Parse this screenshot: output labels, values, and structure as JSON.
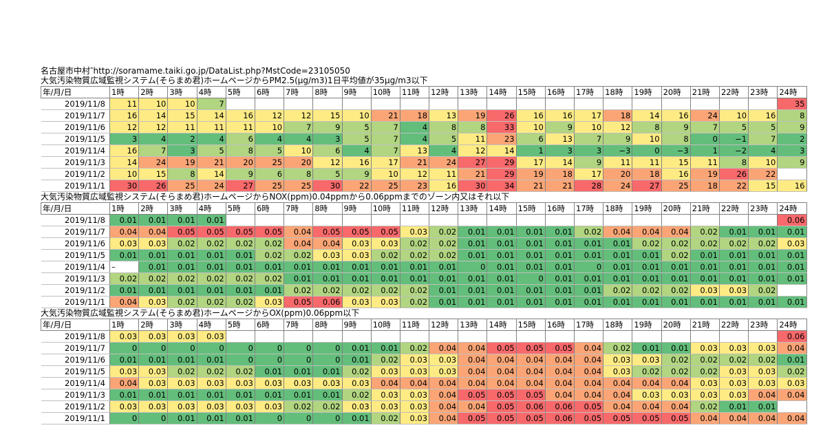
{
  "header": {
    "source": "名古屋市中村‶http://soramame.taiki.go.jp/DataList.php?MstCode=23105050"
  },
  "colors": {
    "red": "#f8696b",
    "orange": "#fba576",
    "yellow": "#ffeb84",
    "light_green": "#b1d580",
    "green": "#63be7b"
  },
  "columns": [
    "年/月/日",
    "1時",
    "2時",
    "3時",
    "4時",
    "5時",
    "6時",
    "7時",
    "8時",
    "9時",
    "10時",
    "11時",
    "12時",
    "13時",
    "14時",
    "15時",
    "16時",
    "17時",
    "18時",
    "19時",
    "20時",
    "21時",
    "22時",
    "23時",
    "24時"
  ],
  "sections": [
    {
      "title": "大気汚染物質広域監視システム(そらまめ君)ホームページからPM2.5(μg/m3)1日平均値が35μg/m3以下",
      "rows": [
        {
          "date": "2019/11/8",
          "values": [
            "11",
            "10",
            "10",
            "7",
            "",
            "",
            "",
            "",
            "",
            "",
            "",
            "",
            "",
            "",
            "",
            "",
            "",
            "",
            "",
            "",
            "",
            "",
            "",
            "35"
          ]
        },
        {
          "date": "2019/11/7",
          "values": [
            "16",
            "14",
            "15",
            "14",
            "16",
            "12",
            "12",
            "15",
            "10",
            "21",
            "18",
            "13",
            "19",
            "26",
            "16",
            "16",
            "17",
            "18",
            "14",
            "16",
            "24",
            "10",
            "16",
            "8"
          ]
        },
        {
          "date": "2019/11/6",
          "values": [
            "12",
            "12",
            "11",
            "11",
            "11",
            "10",
            "7",
            "9",
            "5",
            "7",
            "4",
            "8",
            "8",
            "33",
            "10",
            "9",
            "10",
            "12",
            "8",
            "9",
            "7",
            "5",
            "5",
            "9"
          ]
        },
        {
          "date": "2019/11/5",
          "values": [
            "3",
            "4",
            "2",
            "4",
            "6",
            "4",
            "4",
            "3",
            "5",
            "7",
            "4",
            "5",
            "11",
            "23",
            "6",
            "13",
            "7",
            "9",
            "10",
            "8",
            "0",
            "−1",
            "7",
            "2"
          ]
        },
        {
          "date": "2019/11/4",
          "values": [
            "16",
            "7",
            "3",
            "5",
            "8",
            "5",
            "10",
            "6",
            "4",
            "7",
            "13",
            "4",
            "12",
            "14",
            "1",
            "3",
            "3",
            "−3",
            "0",
            "−3",
            "1",
            "−2",
            "4",
            "3"
          ]
        },
        {
          "date": "2019/11/3",
          "values": [
            "14",
            "24",
            "19",
            "21",
            "20",
            "25",
            "20",
            "12",
            "16",
            "17",
            "21",
            "24",
            "27",
            "29",
            "17",
            "14",
            "9",
            "11",
            "11",
            "15",
            "11",
            "8",
            "10",
            "9"
          ]
        },
        {
          "date": "2019/11/2",
          "values": [
            "10",
            "15",
            "8",
            "14",
            "9",
            "6",
            "8",
            "5",
            "9",
            "10",
            "12",
            "11",
            "21",
            "29",
            "19",
            "18",
            "17",
            "20",
            "18",
            "16",
            "19",
            "26",
            "22",
            ""
          ]
        },
        {
          "date": "2019/11/1",
          "values": [
            "30",
            "26",
            "25",
            "24",
            "27",
            "25",
            "25",
            "30",
            "22",
            "25",
            "23",
            "16",
            "30",
            "34",
            "21",
            "21",
            "28",
            "24",
            "27",
            "25",
            "18",
            "22",
            "15",
            "16"
          ]
        }
      ]
    },
    {
      "title": "大気汚染物質広域監視システム(そらまめ君)ホームページからNOX(ppm)0.04ppmから0.06ppmまでのゾーン内又はそれ以下",
      "rows": [
        {
          "date": "2019/11/8",
          "values": [
            "0.01",
            "0.01",
            "0.01",
            "0.01",
            "",
            "",
            "",
            "",
            "",
            "",
            "",
            "",
            "",
            "",
            "",
            "",
            "",
            "",
            "",
            "",
            "",
            "",
            "",
            "0.06"
          ]
        },
        {
          "date": "2019/11/7",
          "values": [
            "0.04",
            "0.04",
            "0.05",
            "0.05",
            "0.05",
            "0.05",
            "0.04",
            "0.05",
            "0.05",
            "0.05",
            "0.03",
            "0.02",
            "0.01",
            "0.01",
            "0.01",
            "0.01",
            "0.02",
            "0.04",
            "0.04",
            "0.04",
            "0.02",
            "0.01",
            "0.01",
            "0.01"
          ]
        },
        {
          "date": "2019/11/6",
          "values": [
            "0.03",
            "0.03",
            "0.02",
            "0.02",
            "0.02",
            "0.02",
            "0.04",
            "0.04",
            "0.03",
            "0.03",
            "0.02",
            "0.02",
            "0.01",
            "0.01",
            "0.01",
            "0.01",
            "0.01",
            "0.01",
            "0.02",
            "0.02",
            "0.02",
            "0.02",
            "0.02",
            "0.03"
          ]
        },
        {
          "date": "2019/11/5",
          "values": [
            "0.01",
            "0.01",
            "0.01",
            "0.01",
            "0.01",
            "0.02",
            "0.02",
            "0.03",
            "0.03",
            "0.02",
            "0.02",
            "0.02",
            "0.01",
            "0.01",
            "0.01",
            "0.01",
            "0.01",
            "0.01",
            "0.01",
            "0.02",
            "0.01",
            "0.01",
            "0.01",
            "0.01"
          ]
        },
        {
          "date": "2019/11/4",
          "values": [
            "–",
            "0.01",
            "0.01",
            "0.01",
            "0.01",
            "0.01",
            "0.01",
            "0.01",
            "0.01",
            "0.01",
            "0.01",
            "0.01",
            "0",
            "0.01",
            "0.01",
            "0.01",
            "0",
            "0.01",
            "0.01",
            "0.01",
            "0.01",
            "0.01",
            "0.01",
            "0.01"
          ]
        },
        {
          "date": "2019/11/3",
          "values": [
            "0.02",
            "0.02",
            "0.02",
            "0.02",
            "0.02",
            "0.02",
            "0.01",
            "0.01",
            "0.01",
            "0.01",
            "0.01",
            "0.01",
            "0.01",
            "0.01",
            "0",
            "0.01",
            "0.01",
            "0.01",
            "0.01",
            "0.01",
            "0.01",
            "0.01",
            "0.01",
            "0.01"
          ]
        },
        {
          "date": "2019/11/2",
          "values": [
            "0.01",
            "0.01",
            "0.01",
            "0.01",
            "0.01",
            "0.01",
            "0.02",
            "0.02",
            "0.02",
            "0.02",
            "0.02",
            "0.01",
            "0.01",
            "0.01",
            "0.01",
            "0.01",
            "0.01",
            "0.02",
            "0.02",
            "0.02",
            "0.03",
            "0.03",
            "0.02",
            ""
          ]
        },
        {
          "date": "2019/11/1",
          "values": [
            "0.04",
            "0.03",
            "0.02",
            "0.02",
            "0.02",
            "0.03",
            "0.05",
            "0.06",
            "0.03",
            "0.03",
            "0.02",
            "0.01",
            "0.01",
            "0.01",
            "0.01",
            "0.01",
            "0.01",
            "0.01",
            "0.01",
            "0.01",
            "0.01",
            "0.01",
            "0.01",
            "0.01"
          ]
        }
      ]
    },
    {
      "title": "大気汚染物質広域監視システム(そらまめ君)ホームページからOX(ppm)0.06ppm以下",
      "rows": [
        {
          "date": "2019/11/8",
          "values": [
            "0.03",
            "0.03",
            "0.03",
            "0.03",
            "",
            "",
            "",
            "",
            "",
            "",
            "",
            "",
            "",
            "",
            "",
            "",
            "",
            "",
            "",
            "",
            "",
            "",
            "",
            "0.06"
          ]
        },
        {
          "date": "2019/11/7",
          "values": [
            "0",
            "0",
            "0",
            "0",
            "0",
            "0",
            "0",
            "0",
            "0.01",
            "0.01",
            "0.02",
            "0.04",
            "0.04",
            "0.05",
            "0.05",
            "0.05",
            "0.04",
            "0.02",
            "0.01",
            "0.01",
            "0.03",
            "0.03",
            "0.03",
            "0.04"
          ]
        },
        {
          "date": "2019/11/6",
          "values": [
            "0.01",
            "0.01",
            "0.01",
            "0.01",
            "0",
            "0",
            "0",
            "0",
            "0.01",
            "0.02",
            "0.03",
            "0.03",
            "0.04",
            "0.04",
            "0.04",
            "0.04",
            "0.04",
            "0.03",
            "0.03",
            "0.02",
            "0.02",
            "0.02",
            "0.02",
            "0.01"
          ]
        },
        {
          "date": "2019/11/5",
          "values": [
            "0.03",
            "0.03",
            "0.02",
            "0.02",
            "0.02",
            "0.01",
            "0.01",
            "0.01",
            "0.02",
            "0.03",
            "0.03",
            "0.03",
            "0.04",
            "0.04",
            "0.04",
            "0.04",
            "0.04",
            "0.03",
            "0.02",
            "0.02",
            "0.02",
            "0.03",
            "0.03",
            "0.02"
          ]
        },
        {
          "date": "2019/11/4",
          "values": [
            "0.04",
            "0.03",
            "0.03",
            "0.03",
            "0.03",
            "0.03",
            "0.03",
            "0.03",
            "0.03",
            "0.04",
            "0.04",
            "0.04",
            "0.04",
            "0.04",
            "0.04",
            "0.04",
            "0.04",
            "0.04",
            "0.04",
            "0.04",
            "0.03",
            "0.03",
            "0.03",
            "0.03"
          ]
        },
        {
          "date": "2019/11/3",
          "values": [
            "0.01",
            "0.01",
            "0.01",
            "0.01",
            "0.01",
            "0.01",
            "0.01",
            "0.01",
            "0.02",
            "0.03",
            "0.03",
            "0.04",
            "0.05",
            "0.05",
            "0.05",
            "0.04",
            "0.04",
            "0.04",
            "0.03",
            "0.03",
            "0.03",
            "0.03",
            "0.04",
            "0.04"
          ]
        },
        {
          "date": "2019/11/2",
          "values": [
            "0.03",
            "0.03",
            "0.03",
            "0.03",
            "0.03",
            "0.03",
            "0.02",
            "0.02",
            "0.03",
            "0.03",
            "0.03",
            "0.04",
            "0.04",
            "0.05",
            "0.06",
            "0.06",
            "0.05",
            "0.04",
            "0.04",
            "0.04",
            "0.02",
            "0.01",
            "0.01",
            ""
          ]
        },
        {
          "date": "2019/11/1",
          "values": [
            "0",
            "0",
            "0.01",
            "0.01",
            "0.01",
            "0",
            "0",
            "0",
            "0.01",
            "0.02",
            "0.03",
            "0.04",
            "0.05",
            "0.05",
            "0.05",
            "0.06",
            "0.05",
            "0.05",
            "0.05",
            "0.05",
            "0.04",
            "0.04",
            "0.04",
            "0.04"
          ]
        }
      ]
    }
  ]
}
